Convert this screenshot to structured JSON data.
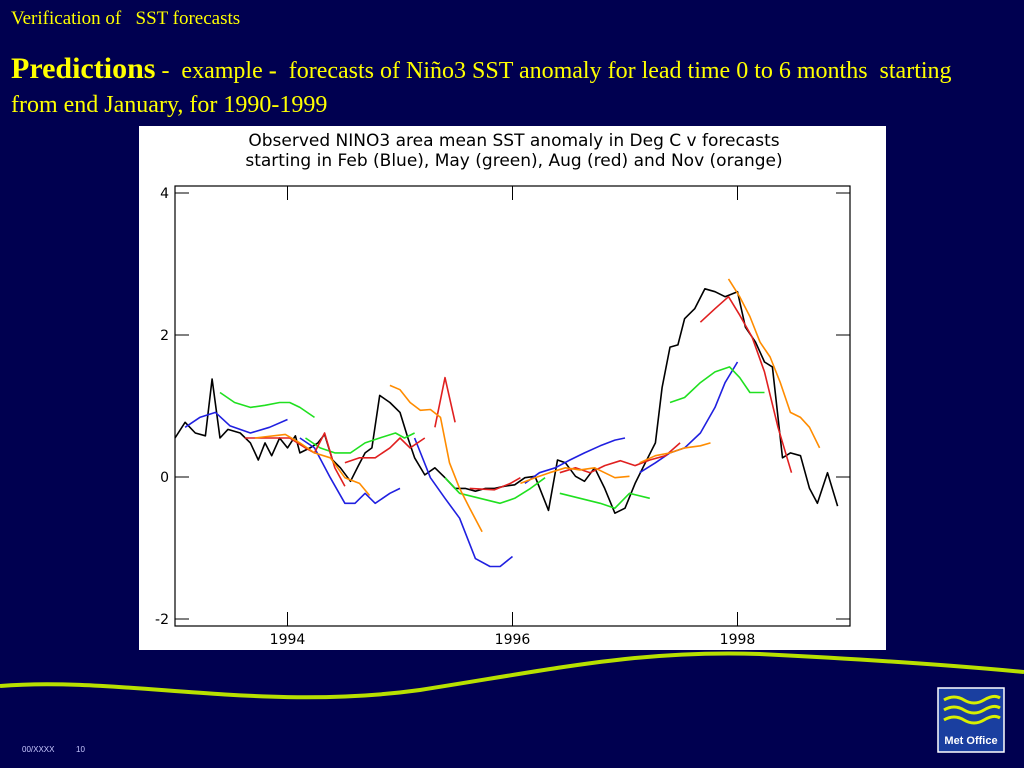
{
  "header": "Verification of   SST forecasts",
  "heading": {
    "parts": [
      "Predictions",
      " -  example ",
      "-",
      "  forecasts of Niño3 SST anomaly for lead time 0 to 6 months  starting from end January, for 1990-1999"
    ]
  },
  "chart_data": {
    "type": "line",
    "title": "Observed NINO3 area mean SST anomaly in Deg C v forecasts",
    "subtitle": "starting in Feb (Blue), May (green), Aug (red) and Nov (orange)",
    "xlim": [
      1993,
      1999
    ],
    "xticks": [
      1994,
      1996,
      1998
    ],
    "ylim": [
      -2,
      4
    ],
    "yticks": [
      -2,
      0,
      2,
      4
    ],
    "grid": false,
    "series": [
      {
        "color": "#000000",
        "x": [
          1993.0,
          1993.09,
          1993.18,
          1993.27,
          1993.33,
          1993.4,
          1993.47,
          1993.58,
          1993.67,
          1993.74,
          1993.8,
          1993.86,
          1993.93,
          1994.0,
          1994.07,
          1994.11,
          1994.2,
          1994.27,
          1994.33,
          1994.4,
          1994.47,
          1994.56,
          1994.63,
          1994.69,
          1994.75,
          1994.82,
          1994.91,
          1995.0,
          1995.07,
          1995.13,
          1995.22,
          1995.31,
          1995.4,
          1995.49,
          1995.58,
          1995.67,
          1995.76,
          1995.84,
          1995.93,
          1996.02,
          1996.11,
          1996.2,
          1996.32,
          1996.4,
          1996.47,
          1996.56,
          1996.64,
          1996.73,
          1996.82,
          1996.91,
          1997.0,
          1997.09,
          1997.18,
          1997.27,
          1997.33,
          1997.4,
          1997.47,
          1997.53,
          1997.62,
          1997.71,
          1997.8,
          1997.89,
          1998.0,
          1998.07,
          1998.16,
          1998.24,
          1998.31,
          1998.4,
          1998.47,
          1998.56,
          1998.64,
          1998.71,
          1998.8,
          1998.89
        ],
        "values": [
          0.55,
          0.77,
          0.62,
          0.58,
          1.38,
          0.55,
          0.67,
          0.62,
          0.48,
          0.24,
          0.48,
          0.3,
          0.55,
          0.41,
          0.58,
          0.34,
          0.41,
          0.48,
          0.6,
          0.24,
          0.13,
          -0.06,
          0.16,
          0.34,
          0.41,
          1.15,
          1.05,
          0.91,
          0.55,
          0.27,
          0.03,
          0.13,
          -0.01,
          -0.16,
          -0.16,
          -0.2,
          -0.16,
          -0.16,
          -0.13,
          -0.11,
          -0.01,
          0.01,
          -0.47,
          0.24,
          0.2,
          0.01,
          -0.06,
          0.13,
          -0.16,
          -0.51,
          -0.44,
          -0.09,
          0.2,
          0.48,
          1.26,
          1.83,
          1.86,
          2.23,
          2.37,
          2.65,
          2.61,
          2.54,
          2.61,
          2.11,
          1.9,
          1.62,
          1.55,
          0.27,
          0.34,
          0.3,
          -0.16,
          -0.37,
          0.06,
          -0.41
        ]
      },
      {
        "color": "#2020e0",
        "x": [
          1993.09,
          1993.22,
          1993.36,
          1993.49,
          1993.67,
          1993.84,
          1994.0
        ],
        "values": [
          0.7,
          0.84,
          0.91,
          0.72,
          0.62,
          0.7,
          0.81
        ]
      },
      {
        "color": "#2020e0",
        "x": [
          1994.11,
          1994.24,
          1994.38,
          1994.51,
          1994.6,
          1994.69,
          1994.78,
          1994.91,
          1995.0
        ],
        "values": [
          0.55,
          0.41,
          -0.01,
          -0.37,
          -0.37,
          -0.23,
          -0.37,
          -0.23,
          -0.16
        ]
      },
      {
        "color": "#2020e0",
        "x": [
          1995.13,
          1995.27,
          1995.4,
          1995.53,
          1995.67,
          1995.8,
          1995.89,
          1996.0
        ],
        "values": [
          0.55,
          -0.01,
          -0.3,
          -0.58,
          -1.15,
          -1.26,
          -1.26,
          -1.12
        ]
      },
      {
        "color": "#2020e0",
        "x": [
          1996.11,
          1996.24,
          1996.38,
          1996.51,
          1996.64,
          1996.78,
          1996.91,
          1997.0
        ],
        "values": [
          -0.09,
          0.06,
          0.13,
          0.24,
          0.34,
          0.44,
          0.52,
          0.55
        ]
      },
      {
        "color": "#2020e0",
        "x": [
          1997.13,
          1997.27,
          1997.4,
          1997.53,
          1997.67,
          1997.8,
          1997.89,
          1998.0
        ],
        "values": [
          0.06,
          0.2,
          0.34,
          0.41,
          0.62,
          0.98,
          1.33,
          1.62
        ]
      },
      {
        "color": "#20e020",
        "x": [
          1993.4,
          1993.53,
          1993.67,
          1993.8,
          1993.93,
          1994.02,
          1994.11,
          1994.24
        ],
        "values": [
          1.19,
          1.05,
          0.98,
          1.01,
          1.05,
          1.05,
          0.98,
          0.84
        ]
      },
      {
        "color": "#20e020",
        "x": [
          1994.16,
          1994.29,
          1994.42,
          1994.56,
          1994.69,
          1994.82,
          1994.96,
          1995.04,
          1995.13
        ],
        "values": [
          0.55,
          0.41,
          0.34,
          0.34,
          0.48,
          0.55,
          0.62,
          0.55,
          0.62
        ]
      },
      {
        "color": "#20e020",
        "x": [
          1995.4,
          1995.53,
          1995.71,
          1995.89,
          1996.02,
          1996.16,
          1996.29
        ],
        "values": [
          -0.01,
          -0.23,
          -0.3,
          -0.37,
          -0.3,
          -0.16,
          -0.01
        ]
      },
      {
        "color": "#20e020",
        "x": [
          1996.42,
          1996.6,
          1996.78,
          1996.91,
          1997.04,
          1997.22
        ],
        "values": [
          -0.23,
          -0.3,
          -0.37,
          -0.44,
          -0.23,
          -0.3
        ]
      },
      {
        "color": "#20e020",
        "x": [
          1997.4,
          1997.53,
          1997.67,
          1997.8,
          1997.93,
          1998.02,
          1998.11,
          1998.24
        ],
        "values": [
          1.05,
          1.12,
          1.33,
          1.48,
          1.55,
          1.4,
          1.19,
          1.19
        ]
      },
      {
        "color": "#e02020",
        "x": [
          1993.62,
          1993.89,
          1994.02,
          1994.16,
          1994.24,
          1994.33,
          1994.42,
          1994.51
        ],
        "values": [
          0.55,
          0.55,
          0.55,
          0.41,
          0.34,
          0.62,
          0.13,
          -0.13
        ]
      },
      {
        "color": "#e02020",
        "x": [
          1994.51,
          1994.64,
          1994.78,
          1994.91,
          1995.0,
          1995.09,
          1995.22
        ],
        "values": [
          0.2,
          0.27,
          0.27,
          0.41,
          0.55,
          0.41,
          0.55
        ]
      },
      {
        "color": "#e02020",
        "x": [
          1995.31,
          1995.4,
          1995.49
        ],
        "values": [
          0.7,
          1.4,
          0.77
        ]
      },
      {
        "color": "#e02020",
        "x": [
          1995.62,
          1995.84,
          1995.98,
          1996.07
        ],
        "values": [
          -0.16,
          -0.18,
          -0.09,
          -0.01
        ]
      },
      {
        "color": "#e02020",
        "x": [
          1996.42,
          1996.56,
          1996.69,
          1996.82,
          1996.96,
          1997.09,
          1997.22,
          1997.36,
          1997.49
        ],
        "values": [
          0.06,
          0.13,
          0.06,
          0.16,
          0.23,
          0.16,
          0.24,
          0.3,
          0.48
        ]
      },
      {
        "color": "#e02020",
        "x": [
          1997.67,
          1997.8,
          1997.92,
          1998.02,
          1998.13,
          1998.24,
          1998.36,
          1998.48
        ],
        "values": [
          2.18,
          2.37,
          2.54,
          2.28,
          1.97,
          1.48,
          0.7,
          0.06
        ]
      },
      {
        "color": "#ff8c00",
        "x": [
          1993.71,
          1993.98,
          1994.11,
          1994.24,
          1994.38,
          1994.51,
          1994.64,
          1994.73
        ],
        "values": [
          0.55,
          0.6,
          0.48,
          0.34,
          0.27,
          -0.01,
          -0.09,
          -0.26
        ]
      },
      {
        "color": "#ff8c00",
        "x": [
          1994.91,
          1995.0,
          1995.09,
          1995.18,
          1995.27,
          1995.36,
          1995.44,
          1995.53,
          1995.62,
          1995.73
        ],
        "values": [
          1.29,
          1.23,
          1.05,
          0.94,
          0.95,
          0.84,
          0.2,
          -0.16,
          -0.44,
          -0.77
        ]
      },
      {
        "color": "#ff8c00",
        "x": [
          1996.07,
          1996.2,
          1996.33,
          1996.47,
          1996.6,
          1996.73,
          1996.91,
          1997.04
        ],
        "values": [
          -0.09,
          -0.01,
          0.06,
          0.13,
          0.1,
          0.13,
          -0.01,
          0.01
        ]
      },
      {
        "color": "#ff8c00",
        "x": [
          1997.13,
          1997.27,
          1997.4,
          1997.53,
          1997.67,
          1997.76
        ],
        "values": [
          0.2,
          0.3,
          0.34,
          0.41,
          0.44,
          0.48
        ]
      },
      {
        "color": "#ff8c00",
        "x": [
          1997.92,
          1998.02,
          1998.11,
          1998.2,
          1998.29,
          1998.38,
          1998.47,
          1998.56,
          1998.64,
          1998.73
        ],
        "values": [
          2.79,
          2.54,
          2.26,
          1.9,
          1.69,
          1.33,
          0.91,
          0.84,
          0.7,
          0.41
        ]
      }
    ]
  },
  "footer": {
    "code": "00/XXXX",
    "page": "10"
  },
  "logo": "Met Office"
}
